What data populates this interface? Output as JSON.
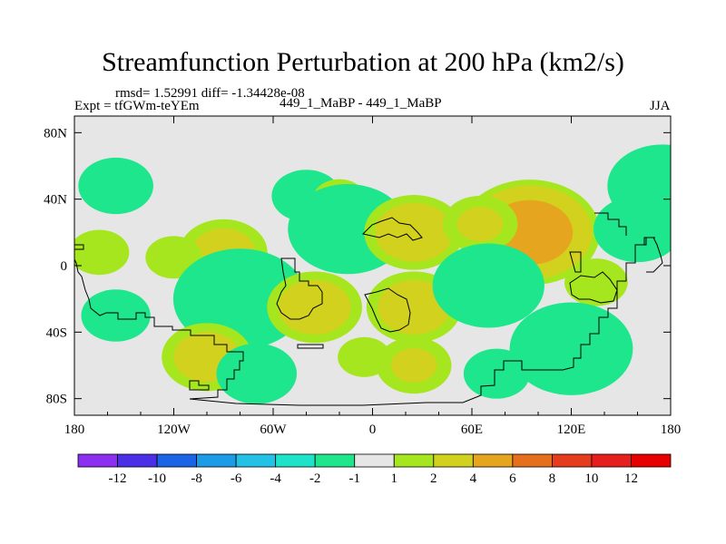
{
  "figure": {
    "title": "Streamfunction Perturbation at 200 hPa (km2/s)",
    "stats": "rmsd= 1.52991 diff= -1.34428e-08",
    "expt": "Expt = tfGWm-teYEm",
    "case": "449_1_MaBP - 449_1_MaBP",
    "season": "JJA"
  },
  "chart_data": {
    "type": "heatmap",
    "title": "Streamfunction Perturbation at 200 hPa (km2/s)",
    "x_range": [
      -180,
      180
    ],
    "y_range": [
      -90,
      90
    ],
    "x_ticks": [
      {
        "lon": -180,
        "label": "180"
      },
      {
        "lon": -120,
        "label": "120W"
      },
      {
        "lon": -60,
        "label": "60W"
      },
      {
        "lon": 0,
        "label": "0"
      },
      {
        "lon": 60,
        "label": "60E"
      },
      {
        "lon": 120,
        "label": "120E"
      },
      {
        "lon": 180,
        "label": "180"
      }
    ],
    "y_ticks": [
      {
        "lat": 80,
        "label": "80N"
      },
      {
        "lat": 40,
        "label": "40N"
      },
      {
        "lat": 0,
        "label": "0"
      },
      {
        "lat": -40,
        "label": "40S"
      },
      {
        "lat": -80,
        "label": "80S"
      }
    ],
    "colorbar": {
      "labels": [
        "-12",
        "-10",
        "-8",
        "-6",
        "-4",
        "-2",
        "-1",
        "1",
        "2",
        "4",
        "6",
        "8",
        "10",
        "12"
      ],
      "colors": [
        "#8c2ff0",
        "#4b2fe6",
        "#1c64e6",
        "#1c9be6",
        "#23c1e6",
        "#1ee3c8",
        "#1ee68c",
        "#e6e6e6",
        "#a5e61e",
        "#d2d21e",
        "#e6a51e",
        "#e66f1e",
        "#e63c1e",
        "#e61e1e",
        "#e60000"
      ]
    },
    "contour_levels": [
      -12,
      -10,
      -8,
      -6,
      -4,
      -2,
      -1,
      1,
      2,
      4,
      6,
      8,
      10,
      12
    ],
    "anomalies": [
      {
        "lon": -155,
        "lat": 48,
        "value": -2.0
      },
      {
        "lon": -90,
        "lat": 8,
        "value": 2.5
      },
      {
        "lon": -120,
        "lat": 5,
        "value": 1.4
      },
      {
        "lon": -165,
        "lat": 8,
        "value": 1.5
      },
      {
        "lon": -155,
        "lat": -30,
        "value": -1.8
      },
      {
        "lon": -80,
        "lat": -20,
        "value": -4.8
      },
      {
        "lon": -100,
        "lat": -55,
        "value": 2.6
      },
      {
        "lon": -70,
        "lat": -65,
        "value": -2.2
      },
      {
        "lon": -40,
        "lat": 42,
        "value": -1.8
      },
      {
        "lon": -20,
        "lat": 40,
        "value": 1.3
      },
      {
        "lon": -15,
        "lat": 22,
        "value": -4.0
      },
      {
        "lon": 25,
        "lat": 20,
        "value": 3.0
      },
      {
        "lon": 95,
        "lat": 20,
        "value": 5.2
      },
      {
        "lon": 65,
        "lat": 25,
        "value": 2.0
      },
      {
        "lon": 160,
        "lat": 22,
        "value": -2.5
      },
      {
        "lon": 175,
        "lat": 48,
        "value": -3.5
      },
      {
        "lon": -35,
        "lat": -25,
        "value": 2.8
      },
      {
        "lon": 25,
        "lat": -25,
        "value": 2.8
      },
      {
        "lon": 70,
        "lat": -12,
        "value": -3.6
      },
      {
        "lon": 135,
        "lat": -10,
        "value": 1.6
      },
      {
        "lon": 120,
        "lat": -50,
        "value": -4.2
      },
      {
        "lon": 25,
        "lat": -60,
        "value": 2.0
      },
      {
        "lon": 75,
        "lat": -65,
        "value": -1.7
      },
      {
        "lon": -5,
        "lat": -55,
        "value": 1.3
      }
    ]
  }
}
